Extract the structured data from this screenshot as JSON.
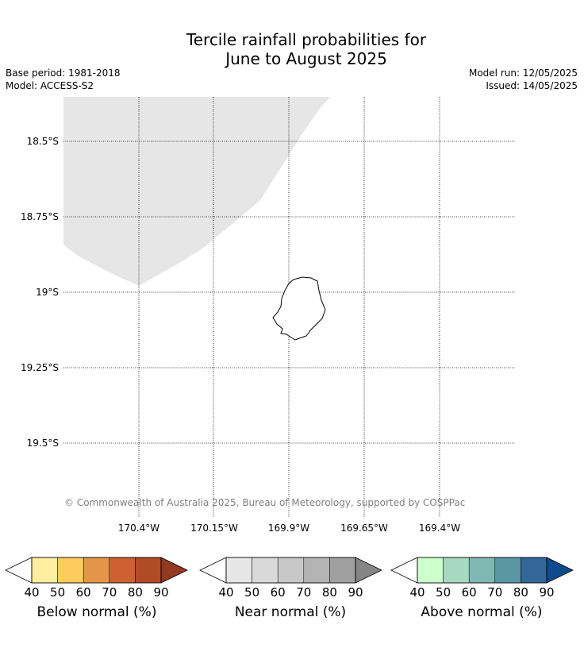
{
  "header": {
    "title_line1": "Tercile rainfall probabilities for",
    "title_line2": "June to August 2025",
    "base_period": "Base period: 1981-2018",
    "model": "Model: ACCESS-S2",
    "model_run": "Model run: 12/05/2025",
    "issued": "Issued: 14/05/2025"
  },
  "map": {
    "lat_labels": [
      "18.5°S",
      "18.75°S",
      "19°S",
      "19.25°S",
      "19.5°S"
    ],
    "lon_labels": [
      "170.4°W",
      "170.15°W",
      "169.9°W",
      "169.65°W",
      "169.4°W"
    ],
    "credit": "© Commonwealth of Australia 2025, Bureau of Meteorology, supported by COSPPac",
    "colors": {
      "near_normal_region": "#e6e6e6",
      "coastline": "#000000",
      "gridline": "#000000"
    }
  },
  "legend": {
    "ticks": [
      "40",
      "50",
      "60",
      "70",
      "80",
      "90"
    ],
    "below": {
      "label": "Below normal (%)",
      "colors": [
        "#ffeda0",
        "#fecc5c",
        "#e3964a",
        "#cd6131",
        "#b14a26",
        "#933821"
      ]
    },
    "near": {
      "label": "Near normal (%)",
      "colors": [
        "#e6e6e6",
        "#d9d9d9",
        "#c8c8c8",
        "#b4b4b4",
        "#a0a0a0",
        "#858585"
      ]
    },
    "above": {
      "label": "Above normal (%)",
      "colors": [
        "#ccffcc",
        "#a6d9bf",
        "#80b8b3",
        "#5a96a3",
        "#336699",
        "#114a8a"
      ]
    }
  }
}
